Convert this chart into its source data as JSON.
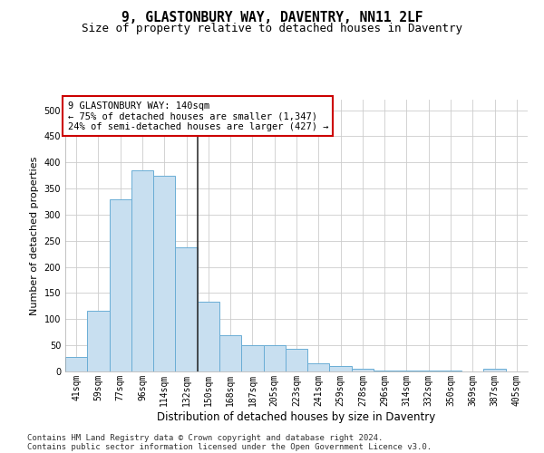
{
  "title1": "9, GLASTONBURY WAY, DAVENTRY, NN11 2LF",
  "title2": "Size of property relative to detached houses in Daventry",
  "xlabel": "Distribution of detached houses by size in Daventry",
  "ylabel": "Number of detached properties",
  "categories": [
    "41sqm",
    "59sqm",
    "77sqm",
    "96sqm",
    "114sqm",
    "132sqm",
    "150sqm",
    "168sqm",
    "187sqm",
    "205sqm",
    "223sqm",
    "241sqm",
    "259sqm",
    "278sqm",
    "296sqm",
    "314sqm",
    "332sqm",
    "350sqm",
    "369sqm",
    "387sqm",
    "405sqm"
  ],
  "values": [
    27,
    116,
    330,
    385,
    375,
    237,
    133,
    69,
    50,
    50,
    43,
    16,
    11,
    5,
    2,
    2,
    2,
    2,
    0,
    6,
    0
  ],
  "bar_color": "#c8dff0",
  "bar_edge_color": "#6aadd5",
  "vline_x": 5.5,
  "vline_color": "#333333",
  "ylim": [
    0,
    520
  ],
  "yticks": [
    0,
    50,
    100,
    150,
    200,
    250,
    300,
    350,
    400,
    450,
    500
  ],
  "annotation_text": "9 GLASTONBURY WAY: 140sqm\n← 75% of detached houses are smaller (1,347)\n24% of semi-detached houses are larger (427) →",
  "annotation_box_color": "#ffffff",
  "annotation_border_color": "#cc0000",
  "footer1": "Contains HM Land Registry data © Crown copyright and database right 2024.",
  "footer2": "Contains public sector information licensed under the Open Government Licence v3.0.",
  "bg_color": "#ffffff",
  "grid_color": "#cccccc",
  "title1_fontsize": 10.5,
  "title2_fontsize": 9,
  "xlabel_fontsize": 8.5,
  "ylabel_fontsize": 8,
  "tick_fontsize": 7,
  "footer_fontsize": 6.5,
  "annotation_fontsize": 7.5
}
